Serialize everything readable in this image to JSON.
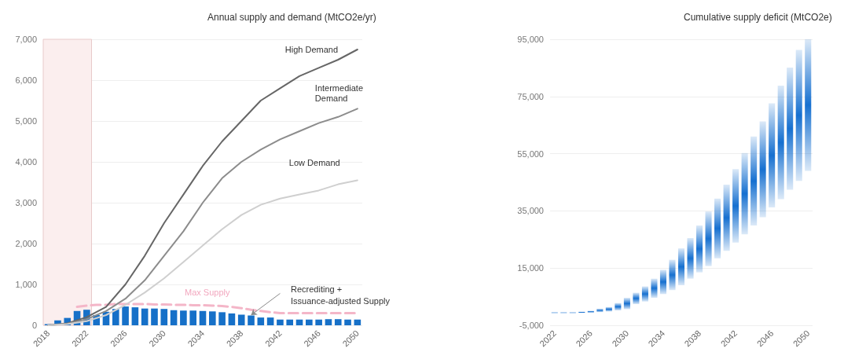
{
  "chart_data": [
    {
      "type": "bar",
      "title": "Annual supply and demand (MtCO2e/yr)",
      "categories": [
        "2018",
        null,
        null,
        null,
        "2022",
        null,
        null,
        null,
        "2026",
        null,
        null,
        null,
        "2030",
        null,
        null,
        null,
        "2034",
        null,
        null,
        null,
        "2038",
        null,
        null,
        null,
        "2042",
        null,
        null,
        null,
        "2046",
        null,
        null,
        null,
        "2050"
      ],
      "series": [
        {
          "color": "#1670c8",
          "values": [
            30,
            120,
            180,
            350,
            380,
            250,
            330,
            400,
            460,
            440,
            410,
            410,
            400,
            370,
            360,
            360,
            350,
            340,
            320,
            290,
            260,
            240,
            190,
            190,
            140,
            140,
            140,
            140,
            140,
            150,
            150,
            140,
            140
          ]
        },
        {
          "type": "line",
          "color": "#f4b6c8",
          "line_style": "dashed",
          "values": [
            null,
            null,
            null,
            450,
            480,
            500,
            500,
            520,
            520,
            520,
            520,
            510,
            510,
            500,
            500,
            490,
            490,
            480,
            470,
            450,
            420,
            380,
            350,
            320,
            300,
            300,
            300,
            300,
            300,
            300,
            300,
            300,
            300
          ]
        },
        {
          "type": "line",
          "name": "High Demand",
          "color": "#666666",
          "values": [
            0,
            null,
            50,
            null,
            200,
            null,
            450,
            null,
            1000,
            null,
            1700,
            null,
            2500,
            null,
            3200,
            null,
            3900,
            null,
            4500,
            null,
            5000,
            null,
            5500,
            null,
            5800,
            null,
            6100,
            null,
            6300,
            null,
            6500,
            null,
            6750
          ]
        },
        {
          "type": "line",
          "name": "Intermediate Demand",
          "color": "#8c8c8c",
          "values": [
            0,
            null,
            40,
            null,
            150,
            null,
            350,
            null,
            650,
            null,
            1100,
            null,
            1700,
            null,
            2300,
            null,
            3000,
            null,
            3600,
            null,
            4000,
            null,
            4300,
            null,
            4550,
            null,
            4750,
            null,
            4950,
            null,
            5100,
            null,
            5300
          ]
        },
        {
          "type": "line",
          "name": "Low Demand",
          "color": "#cfcfcf",
          "values": [
            0,
            null,
            30,
            null,
            100,
            null,
            250,
            null,
            500,
            null,
            800,
            null,
            1150,
            null,
            1550,
            null,
            1950,
            null,
            2350,
            null,
            2700,
            null,
            2950,
            null,
            3100,
            null,
            3200,
            null,
            3300,
            null,
            3450,
            null,
            3550
          ]
        }
      ],
      "ylim": [
        0,
        7000
      ],
      "yticks": [
        0,
        {
          "value": 1000,
          "label": "1,000"
        },
        {
          "value": 2000,
          "label": "2,000"
        },
        {
          "value": 3000,
          "label": "3,000"
        },
        {
          "value": 4000,
          "label": "4,000"
        },
        {
          "value": 5000,
          "label": "5,000"
        },
        {
          "value": 6000,
          "label": "6,000"
        },
        {
          "value": 7000,
          "label": "7,000"
        }
      ],
      "bands": [
        {
          "axis": "x",
          "from": "2018",
          "to": "2022",
          "color": "#fbeeee"
        }
      ],
      "annotations": [
        "Max Supply",
        {
          "text": "Recrediting + Issuance-adjusted Supply",
          "y": 250
        }
      ],
      "grid": "y",
      "legend": false,
      "marker": "none"
    },
    {
      "type": "bar",
      "title": "Cumulative supply deficit (MtCO2e)",
      "categories": [
        "2022",
        null,
        null,
        null,
        "2026",
        null,
        null,
        null,
        "2030",
        null,
        null,
        null,
        "2034",
        null,
        null,
        null,
        "2038",
        null,
        null,
        null,
        "2042",
        null,
        null,
        null,
        "2046",
        null,
        null,
        null,
        "2050"
      ],
      "base": [
        -800,
        -800,
        -800,
        -700,
        -600,
        -400,
        -200,
        200,
        600,
        2400,
        3300,
        4600,
        5900,
        7300,
        9000,
        11300,
        13500,
        15700,
        18400,
        21000,
        23900,
        26800,
        29900,
        32800,
        36200,
        39100,
        42400,
        45500,
        49000
      ],
      "values": [
        400,
        400,
        400,
        500,
        700,
        1200,
        1600,
        2600,
        4000,
        4000,
        5300,
        6700,
        8500,
        10600,
        12900,
        14200,
        16400,
        19100,
        20900,
        23200,
        25700,
        28400,
        31100,
        33500,
        36400,
        39700,
        42700,
        45800,
        46000
      ],
      "color": "#1670d0",
      "ylim": [
        -5000,
        95000
      ],
      "yticks": [
        {
          "value": -5000,
          "label": "-5,000"
        },
        {
          "value": 15000,
          "label": "15,000"
        },
        {
          "value": 35000,
          "label": "35,000"
        },
        {
          "value": 55000,
          "label": "55,000"
        },
        {
          "value": 75000,
          "label": "75,000"
        },
        {
          "value": 95000,
          "label": "95,000"
        }
      ],
      "grid": "y",
      "legend": false
    }
  ]
}
